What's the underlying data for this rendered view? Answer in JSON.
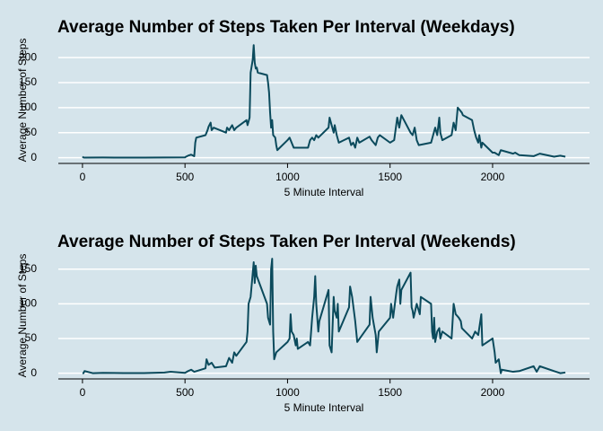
{
  "chart_data": [
    {
      "type": "line",
      "title": "Average Number of Steps Taken Per Interval (Weekdays)",
      "xlabel": "5 Minute Interval",
      "ylabel": "Average Number of Steps",
      "color": "#0b4a5c",
      "grid": true,
      "x": [
        0,
        5,
        10,
        100,
        200,
        300,
        400,
        500,
        505,
        515,
        530,
        545,
        550,
        555,
        600,
        610,
        615,
        625,
        630,
        640,
        700,
        705,
        715,
        730,
        740,
        750,
        800,
        805,
        815,
        820,
        830,
        835,
        840,
        845,
        850,
        855,
        900,
        905,
        910,
        915,
        920,
        925,
        930,
        940,
        945,
        950,
        1000,
        1010,
        1020,
        1030,
        1100,
        1110,
        1120,
        1130,
        1140,
        1150,
        1200,
        1205,
        1215,
        1225,
        1230,
        1240,
        1250,
        1300,
        1310,
        1320,
        1330,
        1340,
        1350,
        1400,
        1410,
        1430,
        1440,
        1450,
        1500,
        1520,
        1535,
        1545,
        1555,
        1600,
        1610,
        1620,
        1630,
        1640,
        1700,
        1710,
        1720,
        1730,
        1740,
        1745,
        1755,
        1800,
        1810,
        1820,
        1830,
        1840,
        1850,
        1855,
        1900,
        1910,
        1920,
        1930,
        1935,
        1945,
        1950,
        2000,
        2010,
        2030,
        2040,
        2100,
        2110,
        2130,
        2200,
        2230,
        2300,
        2330,
        2355
      ],
      "values": [
        2,
        0.4,
        0.2,
        0.4,
        0.1,
        0.1,
        0.3,
        0.5,
        2,
        4,
        6,
        3,
        30,
        40,
        45,
        55,
        62,
        70,
        55,
        60,
        50,
        60,
        55,
        65,
        55,
        60,
        75,
        65,
        80,
        170,
        195,
        225,
        190,
        178,
        180,
        170,
        165,
        150,
        130,
        90,
        60,
        75,
        45,
        40,
        25,
        15,
        35,
        40,
        30,
        20,
        20,
        35,
        40,
        35,
        45,
        40,
        60,
        80,
        65,
        50,
        65,
        45,
        30,
        40,
        25,
        30,
        20,
        40,
        30,
        42,
        35,
        25,
        40,
        45,
        30,
        35,
        80,
        60,
        85,
        50,
        45,
        60,
        35,
        25,
        30,
        45,
        60,
        45,
        80,
        50,
        35,
        45,
        70,
        55,
        100,
        95,
        90,
        85,
        75,
        55,
        40,
        30,
        45,
        20,
        30,
        10,
        10,
        5,
        15,
        8,
        10,
        5,
        3,
        8,
        2,
        4,
        2
      ],
      "xlim": [
        -117.75,
        2472.75
      ],
      "ylim": [
        -11.5,
        241.5
      ],
      "xticks": [
        0,
        500,
        1000,
        1500,
        2000
      ],
      "yticks": [
        0,
        50,
        100,
        150,
        200
      ]
    },
    {
      "type": "line",
      "title": "Average Number of Steps Taken Per Interval (Weekends)",
      "xlabel": "5 Minute Interval",
      "ylabel": "Average Number of Steps",
      "color": "#0b4a5c",
      "grid": true,
      "x": [
        0,
        5,
        10,
        50,
        100,
        200,
        300,
        400,
        430,
        500,
        515,
        530,
        545,
        600,
        605,
        615,
        630,
        645,
        700,
        715,
        730,
        740,
        750,
        800,
        805,
        810,
        820,
        835,
        840,
        845,
        850,
        900,
        905,
        915,
        920,
        925,
        930,
        935,
        945,
        1000,
        1010,
        1015,
        1020,
        1030,
        1040,
        1045,
        1050,
        1100,
        1110,
        1120,
        1130,
        1135,
        1140,
        1150,
        1155,
        1200,
        1205,
        1215,
        1225,
        1230,
        1240,
        1245,
        1250,
        1300,
        1305,
        1315,
        1330,
        1340,
        1400,
        1405,
        1415,
        1430,
        1435,
        1445,
        1500,
        1505,
        1515,
        1530,
        1535,
        1545,
        1550,
        1555,
        1600,
        1605,
        1610,
        1615,
        1630,
        1645,
        1650,
        1700,
        1705,
        1710,
        1715,
        1720,
        1730,
        1740,
        1745,
        1755,
        1800,
        1810,
        1820,
        1835,
        1845,
        1850,
        1900,
        1915,
        1930,
        1945,
        1950,
        2000,
        2010,
        2015,
        2030,
        2040,
        2045,
        2100,
        2130,
        2200,
        2215,
        2230,
        2300,
        2330,
        2355
      ],
      "values": [
        0,
        0,
        3,
        0,
        0.5,
        0.2,
        0.2,
        1,
        2,
        0.5,
        3,
        5,
        2,
        7,
        20,
        12,
        15,
        8,
        10,
        22,
        15,
        30,
        25,
        45,
        60,
        100,
        110,
        160,
        130,
        155,
        140,
        100,
        80,
        70,
        150,
        165,
        60,
        20,
        30,
        45,
        50,
        85,
        60,
        55,
        40,
        50,
        35,
        45,
        40,
        80,
        110,
        140,
        100,
        60,
        75,
        120,
        40,
        30,
        110,
        90,
        80,
        100,
        60,
        95,
        125,
        110,
        75,
        45,
        70,
        110,
        80,
        55,
        30,
        60,
        80,
        100,
        80,
        115,
        125,
        135,
        100,
        120,
        145,
        95,
        90,
        80,
        100,
        85,
        110,
        100,
        60,
        50,
        80,
        45,
        60,
        65,
        50,
        60,
        50,
        100,
        85,
        80,
        75,
        65,
        50,
        60,
        55,
        85,
        40,
        50,
        30,
        15,
        20,
        0,
        5,
        2,
        3,
        10,
        2,
        10,
        3,
        0,
        1
      ],
      "xlim": [
        -117.75,
        2472.75
      ],
      "ylim": [
        -8.3,
        174.3
      ],
      "xticks": [
        0,
        500,
        1000,
        1500,
        2000
      ],
      "yticks": [
        0,
        50,
        100,
        150
      ]
    }
  ]
}
